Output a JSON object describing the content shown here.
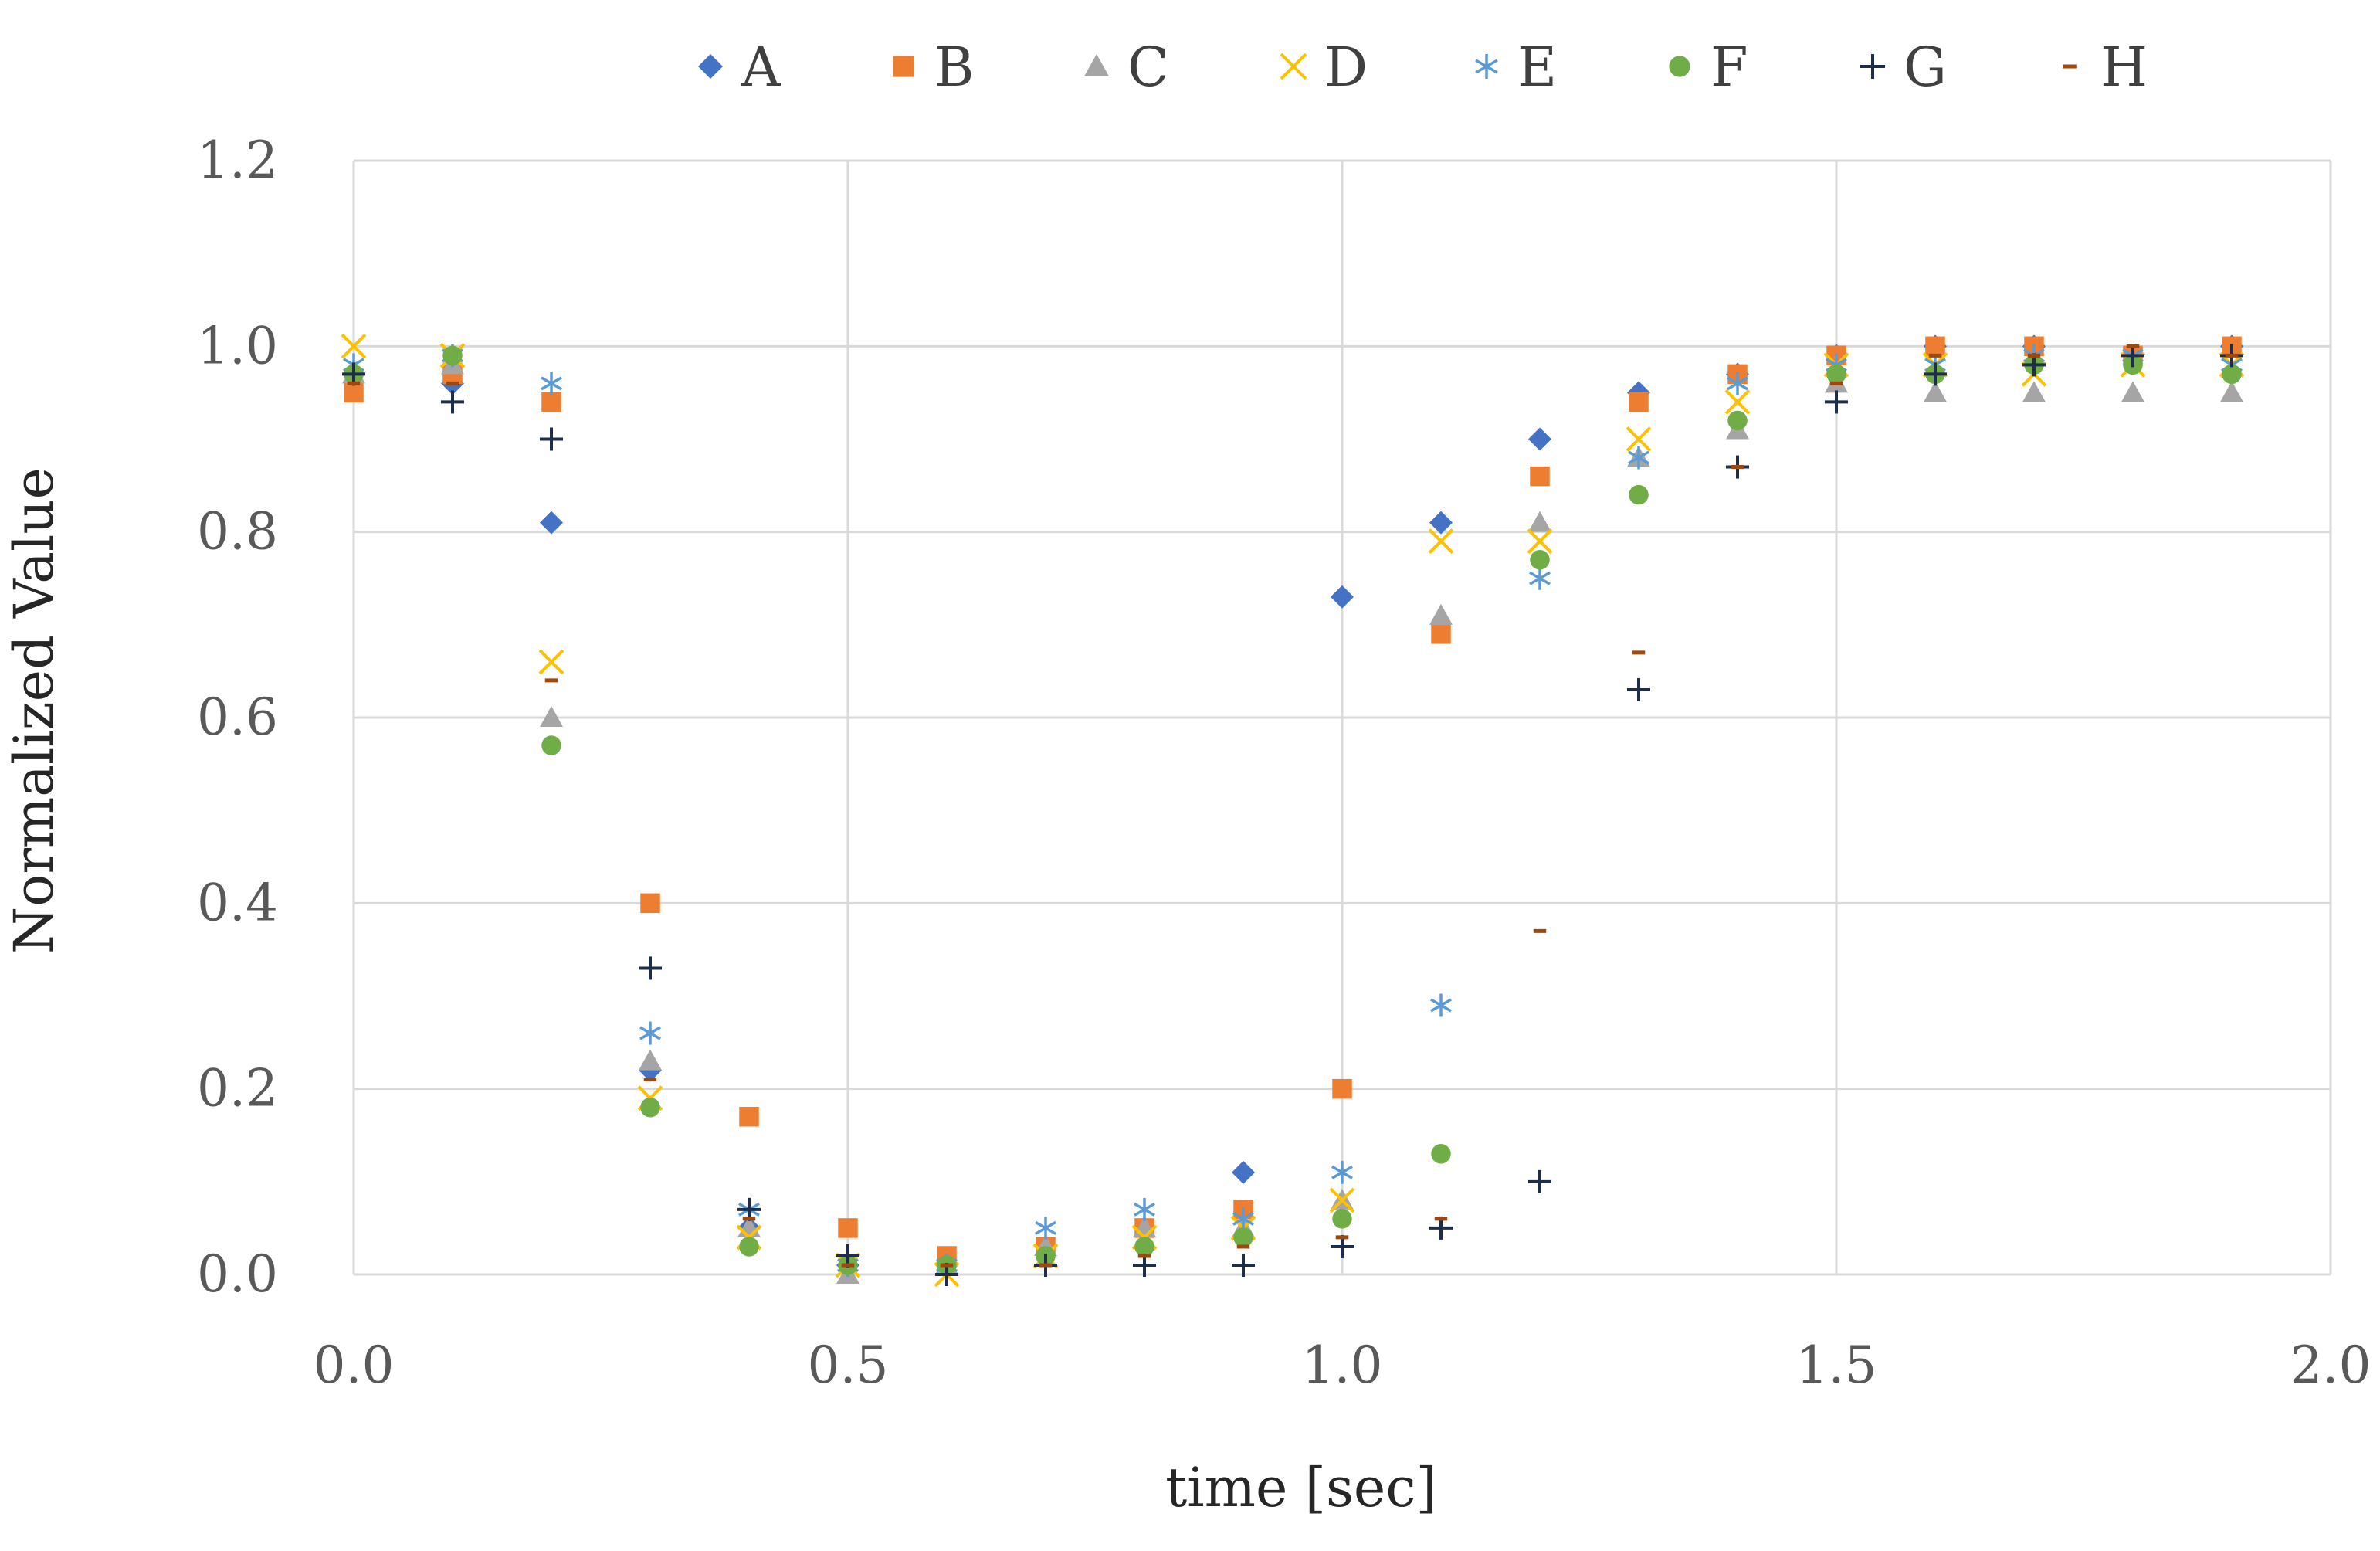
{
  "chart_data": {
    "type": "scatter",
    "title": "",
    "xlabel": "time [sec]",
    "ylabel": "Normalized Value",
    "xlim": [
      0.0,
      2.0
    ],
    "ylim": [
      0.0,
      1.2
    ],
    "xticks": [
      0.0,
      0.5,
      1.0,
      1.5,
      2.0
    ],
    "yticks": [
      0.0,
      0.2,
      0.4,
      0.6,
      0.8,
      1.0,
      1.2
    ],
    "xtick_labels": [
      "0.0",
      "0.5",
      "1.0",
      "1.5",
      "2.0"
    ],
    "ytick_labels": [
      "0.0",
      "0.2",
      "0.4",
      "0.6",
      "0.8",
      "1.0",
      "1.2"
    ],
    "grid": true,
    "legend_position": "top",
    "x": [
      0.0,
      0.1,
      0.2,
      0.3,
      0.4,
      0.5,
      0.6,
      0.7,
      0.8,
      0.9,
      1.0,
      1.1,
      1.2,
      1.3,
      1.4,
      1.5,
      1.6,
      1.7,
      1.8,
      1.9
    ],
    "series": [
      {
        "name": "A",
        "marker": "diamond",
        "color": "#4472C4",
        "values": [
          0.97,
          0.96,
          0.81,
          0.22,
          0.05,
          0.01,
          0.01,
          0.03,
          0.05,
          0.11,
          0.73,
          0.81,
          0.9,
          0.95,
          0.97,
          0.99,
          1.0,
          1.0,
          0.99,
          1.0
        ]
      },
      {
        "name": "B",
        "marker": "square",
        "color": "#ED7D31",
        "values": [
          0.95,
          0.97,
          0.94,
          0.4,
          0.17,
          0.05,
          0.02,
          0.03,
          0.05,
          0.07,
          0.2,
          0.69,
          0.86,
          0.94,
          0.97,
          0.99,
          1.0,
          1.0,
          0.99,
          1.0
        ]
      },
      {
        "name": "C",
        "marker": "triangle",
        "color": "#A5A5A5",
        "values": [
          0.97,
          0.98,
          0.6,
          0.23,
          0.05,
          0.0,
          0.01,
          0.03,
          0.05,
          0.05,
          0.08,
          0.71,
          0.81,
          0.88,
          0.91,
          0.96,
          0.95,
          0.95,
          0.95,
          0.95
        ]
      },
      {
        "name": "D",
        "marker": "x",
        "color": "#FFC000",
        "values": [
          1.0,
          0.99,
          0.66,
          0.19,
          0.04,
          0.01,
          0.0,
          0.02,
          0.04,
          0.05,
          0.08,
          0.79,
          0.79,
          0.9,
          0.94,
          0.98,
          0.98,
          0.97,
          0.98,
          0.98
        ]
      },
      {
        "name": "E",
        "marker": "asterisk",
        "color": "#5B9BD5",
        "values": [
          0.98,
          0.99,
          0.96,
          0.26,
          0.07,
          0.01,
          0.01,
          0.05,
          0.07,
          0.06,
          0.11,
          0.29,
          0.75,
          0.88,
          0.96,
          0.98,
          0.98,
          0.99,
          0.99,
          0.98
        ]
      },
      {
        "name": "F",
        "marker": "circle",
        "color": "#70AD47",
        "values": [
          0.97,
          0.99,
          0.57,
          0.18,
          0.03,
          0.01,
          0.01,
          0.02,
          0.03,
          0.04,
          0.06,
          0.13,
          0.77,
          0.84,
          0.92,
          0.97,
          0.97,
          0.98,
          0.98,
          0.97
        ]
      },
      {
        "name": "G",
        "marker": "plus",
        "color": "#1F2D4D",
        "values": [
          0.97,
          0.94,
          0.9,
          0.33,
          0.07,
          0.02,
          0.0,
          0.01,
          0.01,
          0.01,
          0.03,
          0.05,
          0.1,
          0.63,
          0.87,
          0.94,
          0.97,
          0.98,
          0.99,
          0.99
        ]
      },
      {
        "name": "H",
        "marker": "dash",
        "color": "#9E480E",
        "values": [
          0.96,
          0.96,
          0.64,
          0.21,
          0.06,
          0.01,
          0.01,
          0.01,
          0.02,
          0.03,
          0.04,
          0.06,
          0.37,
          0.67,
          0.87,
          0.96,
          0.99,
          0.99,
          1.0,
          0.99
        ]
      }
    ]
  }
}
